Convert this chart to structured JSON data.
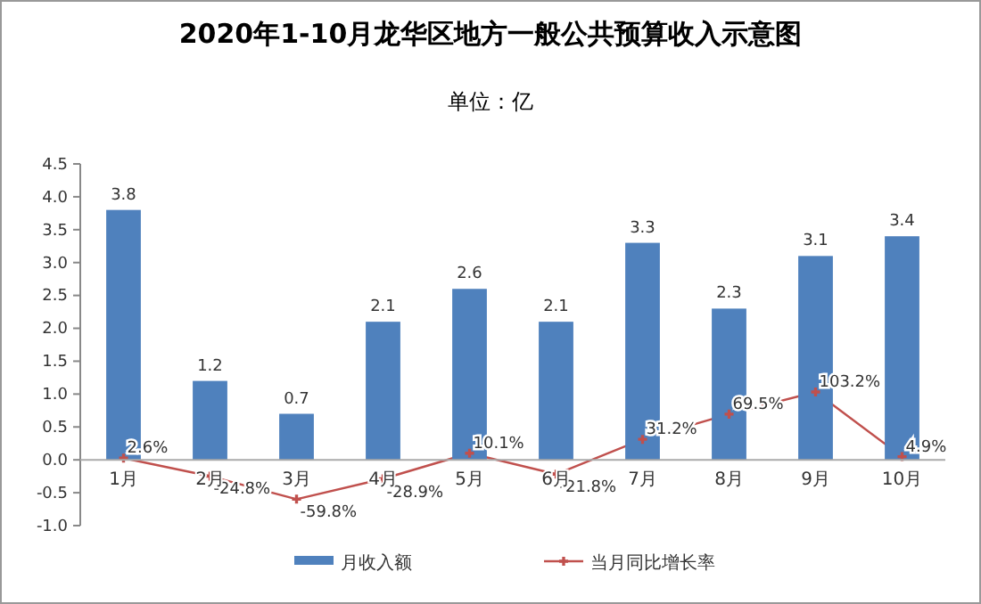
{
  "chart_data": {
    "type": "bar",
    "title": "2020年1-10月龙华区地方一般公共预算收入示意图",
    "subtitle": "单位：亿",
    "categories": [
      "1月",
      "2月",
      "3月",
      "4月",
      "5月",
      "6月",
      "7月",
      "8月",
      "9月",
      "10月"
    ],
    "series": [
      {
        "name": "月收入额",
        "color": "#4f81bd",
        "values": [
          3.8,
          1.2,
          0.7,
          2.1,
          2.6,
          2.1,
          3.3,
          2.3,
          3.1,
          3.4
        ],
        "value_labels": [
          "3.8",
          "1.2",
          "0.7",
          "2.1",
          "2.6",
          "2.1",
          "3.3",
          "2.3",
          "3.1",
          "3.4"
        ]
      },
      {
        "name": "当月同比增长率",
        "type": "line",
        "color": "#c0504d",
        "marker": "cross",
        "values": [
          0.026,
          -0.248,
          -0.598,
          -0.289,
          0.101,
          -0.218,
          0.312,
          0.695,
          1.032,
          0.049
        ],
        "value_labels": [
          "2.6%",
          "-24.8%",
          "-59.8%",
          "-28.9%",
          "10.1%",
          "-21.8%",
          "31.2%",
          "69.5%",
          "103.2%",
          "4.9%"
        ]
      }
    ],
    "ylim": [
      -1.0,
      4.5
    ],
    "yticks": [
      {
        "value": -1.0,
        "label": "-1.0"
      },
      {
        "value": -0.5,
        "label": "-0.5"
      },
      {
        "value": 0,
        "label": "0.0"
      },
      {
        "value": 0.5,
        "label": "0.5"
      },
      {
        "value": 1.0,
        "label": "1.0"
      },
      {
        "value": 1.5,
        "label": "1.5"
      },
      {
        "value": 2.0,
        "label": "2.0"
      },
      {
        "value": 2.5,
        "label": "2.5"
      },
      {
        "value": 3.0,
        "label": "3.0"
      },
      {
        "value": 3.5,
        "label": "3.5"
      },
      {
        "value": 4.0,
        "label": "4.0"
      },
      {
        "value": 4.5,
        "label": "4.5"
      }
    ],
    "grid": false,
    "legend": "bottom"
  }
}
